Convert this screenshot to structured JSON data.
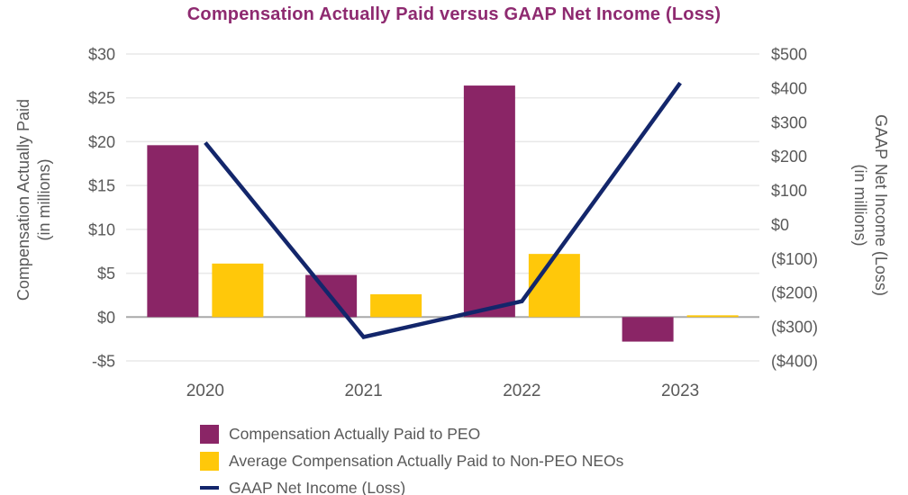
{
  "title": "Compensation Actually Paid versus GAAP Net Income (Loss)",
  "colors": {
    "title": "#8E2A70",
    "peo_bar": "#8A2566",
    "non_peo_bar": "#FFC80A",
    "gaap_line": "#13266B",
    "axis_text": "#595959",
    "gridline": "#E8E8E8",
    "zero_line": "#A9A9A9",
    "background": "#FFFFFF"
  },
  "left_axis_title": {
    "line1": "Compensation Actually Paid",
    "line2": "(in millions)"
  },
  "right_axis_title": {
    "line1": "GAAP Net Income (Loss)",
    "line2": "(in millions)"
  },
  "legend": {
    "items": [
      {
        "label": "Compensation Actually Paid to PEO",
        "swatch": "square",
        "color": "#8A2566"
      },
      {
        "label": "Average Compensation Actually Paid to Non-PEO NEOs",
        "swatch": "square",
        "color": "#FFC80A"
      },
      {
        "label": "GAAP Net Income (Loss)",
        "swatch": "line",
        "color": "#13266B"
      }
    ]
  },
  "chart_data": {
    "type": "combo-bar-line",
    "title": "Compensation Actually Paid versus GAAP Net Income (Loss)",
    "categories": [
      "2020",
      "2021",
      "2022",
      "2023"
    ],
    "series": [
      {
        "name": "Compensation Actually Paid to PEO",
        "type": "bar",
        "axis": "left",
        "color": "#8A2566",
        "values": [
          19.6,
          4.8,
          26.4,
          -2.8
        ]
      },
      {
        "name": "Average Compensation Actually Paid to Non-PEO NEOs",
        "type": "bar",
        "axis": "left",
        "color": "#FFC80A",
        "values": [
          6.1,
          2.6,
          7.2,
          0.2
        ]
      },
      {
        "name": "GAAP Net Income (Loss)",
        "type": "line",
        "axis": "right",
        "color": "#13266B",
        "values": [
          240,
          -330,
          -225,
          415
        ]
      }
    ],
    "left_axis": {
      "label": "Compensation Actually Paid (in millions)",
      "min": -5,
      "max": 30,
      "tick_values": [
        30,
        25,
        20,
        15,
        10,
        5,
        0,
        -5
      ],
      "tick_labels": [
        "$30",
        "$25",
        "$20",
        "$15",
        "$10",
        "$5",
        "$0",
        "-$5"
      ]
    },
    "right_axis": {
      "label": "GAAP Net Income (Loss) (in millions)",
      "min": -400,
      "max": 500,
      "tick_values": [
        500,
        400,
        300,
        200,
        100,
        0,
        -100,
        -200,
        -300,
        -400
      ],
      "tick_labels": [
        "$500",
        "$400",
        "$300",
        "$200",
        "$100",
        "$0",
        "($100)",
        "($200)",
        "($300)",
        "($400)"
      ]
    },
    "grid": "horizontal-only",
    "legend_position": "bottom-left"
  }
}
